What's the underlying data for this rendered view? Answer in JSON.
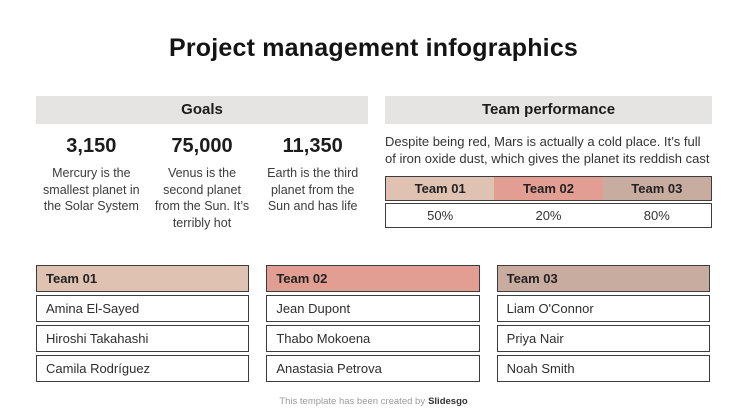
{
  "title": "Project management infographics",
  "colors": {
    "section_header_bg": "#e5e4e2",
    "team01": "#dfc2b1",
    "team02": "#e29e92",
    "team03": "#c9aca0",
    "table_border": "#3d3d3d"
  },
  "goals": {
    "header": "Goals",
    "items": [
      {
        "value": "3,150",
        "description": "Mercury is the smallest planet in the Solar System"
      },
      {
        "value": "75,000",
        "description": "Venus is the second planet from the Sun. It’s terribly hot"
      },
      {
        "value": "11,350",
        "description": "Earth is the third planet from the Sun and has life"
      }
    ]
  },
  "team_performance": {
    "header": "Team performance",
    "description": "Despite being red, Mars is actually a cold place. It’s full of iron oxide dust, which gives the planet its reddish cast",
    "table": {
      "columns": [
        "Team 01",
        "Team 02",
        "Team 03"
      ],
      "values": [
        "50%",
        "20%",
        "80%"
      ]
    }
  },
  "teams": [
    {
      "name": "Team 01",
      "members": [
        "Amina El-Sayed",
        "Hiroshi Takahashi",
        "Camila Rodríguez"
      ]
    },
    {
      "name": "Team 02",
      "members": [
        "Jean Dupont",
        "Thabo Mokoena",
        "Anastasia Petrova"
      ]
    },
    {
      "name": "Team 03",
      "members": [
        "Liam O'Connor",
        "Priya Nair",
        "Noah Smith"
      ]
    }
  ],
  "footer": {
    "text": "This template has been created by",
    "brand": "Slidesgo"
  }
}
